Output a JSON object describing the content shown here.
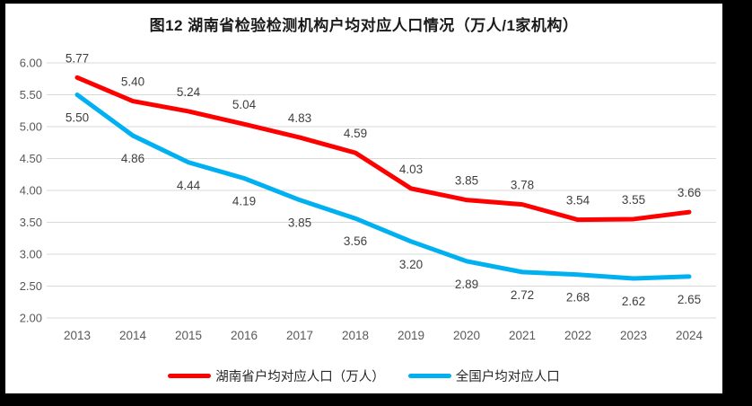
{
  "page": {
    "outer_background": "#000000",
    "chart_background": "#ffffff"
  },
  "colors": {
    "grid": "#d9d9d9",
    "tick_text": "#595959",
    "data_label_text": "#3f3f3f",
    "title_text": "#1a1a1a",
    "legend_text": "#262626"
  },
  "chart_data": {
    "type": "line",
    "title": "图12 湖南省检验检测机构户均对应人口情况（万人/1家机构）",
    "categories": [
      "2013",
      "2014",
      "2015",
      "2016",
      "2017",
      "2018",
      "2019",
      "2020",
      "2021",
      "2022",
      "2023",
      "2024"
    ],
    "series": [
      {
        "key": "hunan",
        "name": "湖南省户均对应人口（万人）",
        "color": "#ff0000",
        "values": [
          5.77,
          5.4,
          5.24,
          5.04,
          4.83,
          4.59,
          4.03,
          3.85,
          3.78,
          3.54,
          3.55,
          3.66
        ],
        "data_label_position": "above"
      },
      {
        "key": "national",
        "name": "全国户均对应人口",
        "color": "#00b0f0",
        "values": [
          5.5,
          4.86,
          4.44,
          4.19,
          3.85,
          3.56,
          3.2,
          2.89,
          2.72,
          2.68,
          2.62,
          2.65
        ],
        "data_label_position": "below"
      }
    ],
    "y_axis": {
      "min": 2.0,
      "max": 6.0,
      "tick_step": 0.5,
      "tick_labels": [
        "6.00",
        "5.50",
        "5.00",
        "4.50",
        "4.00",
        "3.50",
        "3.00",
        "2.50",
        "2.00"
      ]
    },
    "x_axis_label": "",
    "y_axis_label": "",
    "grid": true,
    "legend_position": "bottom",
    "data_label_decimals": 2
  }
}
